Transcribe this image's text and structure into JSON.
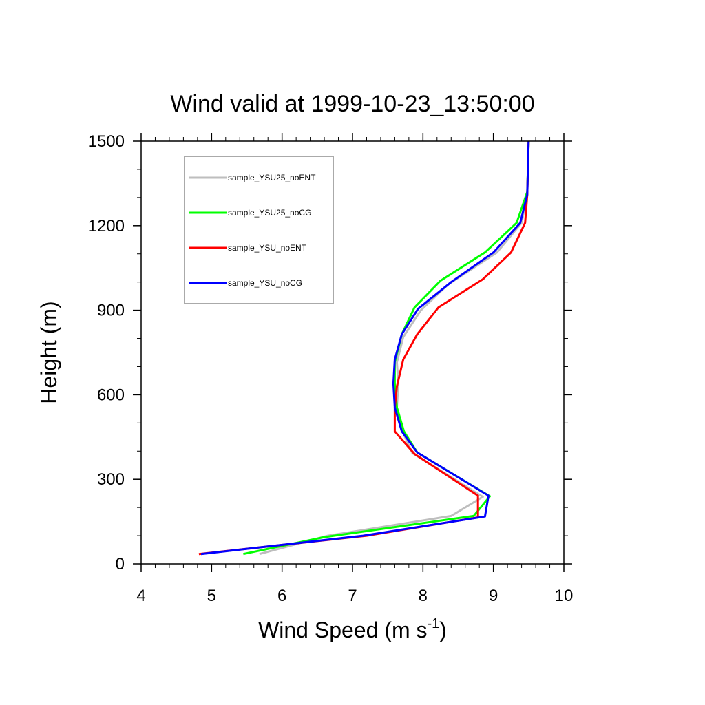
{
  "chart_data": {
    "type": "line",
    "title": "Wind valid at 1999-10-23_13:50:00",
    "xlabel": "Wind Speed (m s",
    "xlabel_sup": "-1",
    "xlabel_end": ")",
    "ylabel": "Height (m)",
    "xlim": [
      4,
      10
    ],
    "ylim": [
      0,
      1500
    ],
    "xticks": [
      4,
      5,
      6,
      7,
      8,
      9,
      10
    ],
    "yticks": [
      0,
      300,
      600,
      900,
      1200,
      1500
    ],
    "x_minor_step": 0.2,
    "y_minor_step": 100,
    "grid": false,
    "legend_position": "top-left",
    "series": [
      {
        "name": "sample_YSU25_noENT",
        "color": "#bebebe",
        "points": [
          [
            5.68,
            35
          ],
          [
            6.65,
            100
          ],
          [
            8.4,
            170
          ],
          [
            8.85,
            238
          ],
          [
            7.85,
            393
          ],
          [
            7.7,
            475
          ],
          [
            7.63,
            555
          ],
          [
            7.65,
            640
          ],
          [
            7.63,
            715
          ],
          [
            7.72,
            805
          ],
          [
            7.97,
            900
          ],
          [
            8.35,
            990
          ],
          [
            9.05,
            1105
          ],
          [
            9.4,
            1210
          ],
          [
            9.48,
            1310
          ],
          [
            9.5,
            1500
          ]
        ]
      },
      {
        "name": "sample_YSU25_noCG",
        "color": "#00ff00",
        "points": [
          [
            5.45,
            35
          ],
          [
            6.6,
            95
          ],
          [
            8.72,
            170
          ],
          [
            8.95,
            240
          ],
          [
            7.92,
            395
          ],
          [
            7.73,
            470
          ],
          [
            7.63,
            555
          ],
          [
            7.6,
            640
          ],
          [
            7.6,
            715
          ],
          [
            7.7,
            815
          ],
          [
            7.88,
            910
          ],
          [
            8.25,
            1005
          ],
          [
            8.88,
            1105
          ],
          [
            9.33,
            1210
          ],
          [
            9.48,
            1320
          ],
          [
            9.5,
            1500
          ]
        ]
      },
      {
        "name": "sample_YSU_noENT",
        "color": "#ff0000",
        "points": [
          [
            4.82,
            35
          ],
          [
            7.2,
            100
          ],
          [
            8.78,
            165
          ],
          [
            8.78,
            242
          ],
          [
            7.88,
            390
          ],
          [
            7.6,
            470
          ],
          [
            7.6,
            555
          ],
          [
            7.63,
            630
          ],
          [
            7.72,
            725
          ],
          [
            7.92,
            815
          ],
          [
            8.22,
            910
          ],
          [
            8.85,
            1010
          ],
          [
            9.25,
            1105
          ],
          [
            9.45,
            1210
          ],
          [
            9.48,
            1310
          ],
          [
            9.5,
            1500
          ]
        ]
      },
      {
        "name": "sample_YSU_noCG",
        "color": "#0000ff",
        "points": [
          [
            4.85,
            35
          ],
          [
            7.15,
            100
          ],
          [
            8.88,
            168
          ],
          [
            8.93,
            242
          ],
          [
            7.92,
            395
          ],
          [
            7.7,
            470
          ],
          [
            7.6,
            555
          ],
          [
            7.58,
            640
          ],
          [
            7.6,
            725
          ],
          [
            7.7,
            815
          ],
          [
            7.93,
            905
          ],
          [
            8.4,
            1000
          ],
          [
            9.0,
            1105
          ],
          [
            9.38,
            1210
          ],
          [
            9.48,
            1310
          ],
          [
            9.5,
            1500
          ]
        ]
      }
    ]
  }
}
